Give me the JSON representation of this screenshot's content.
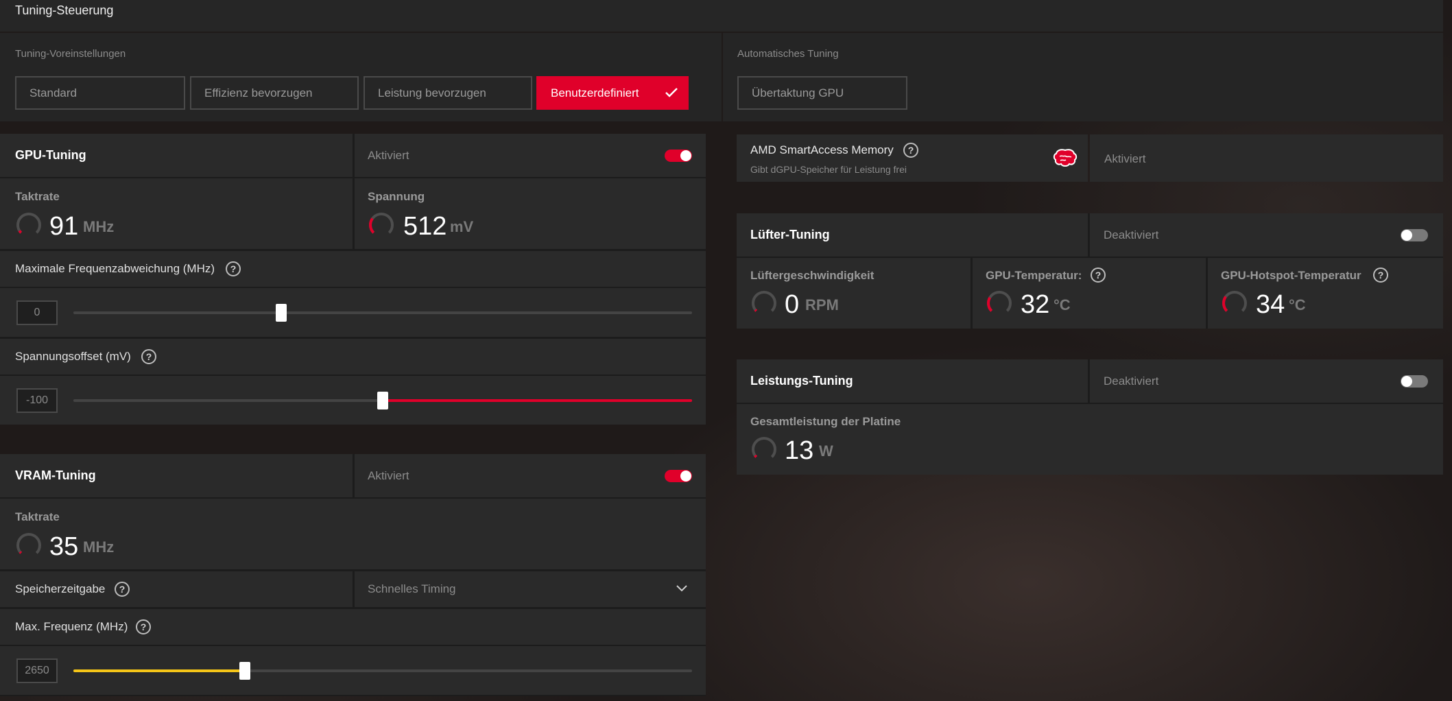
{
  "header": {
    "title": "Tuning-Steuerung"
  },
  "presets": {
    "label": "Tuning-Voreinstellungen",
    "items": [
      "Standard",
      "Effizienz bevorzugen",
      "Leistung bevorzugen",
      "Benutzerdefiniert"
    ],
    "selected": "Benutzerdefiniert",
    "check_icon": "check-icon"
  },
  "auto_tuning": {
    "label": "Automatisches Tuning",
    "button": "Übertaktung GPU"
  },
  "gpu_tuning": {
    "title": "GPU-Tuning",
    "status": "Aktiviert",
    "enabled": true,
    "clock": {
      "label": "Taktrate",
      "value": "91",
      "unit": "MHz",
      "gauge_fraction": 0.05
    },
    "voltage": {
      "label": "Spannung",
      "value": "512",
      "unit": "mV",
      "gauge_fraction": 0.3
    },
    "max_freq_offset": {
      "label": "Maximale Frequenzabweichung (MHz)",
      "value": "0",
      "slider_fraction": 0.336
    },
    "voltage_offset": {
      "label": "Spannungsoffset (mV)",
      "value": "-100",
      "slider_fraction": 0.5
    }
  },
  "vram_tuning": {
    "title": "VRAM-Tuning",
    "status": "Aktiviert",
    "enabled": true,
    "clock": {
      "label": "Taktrate",
      "value": "35",
      "unit": "MHz",
      "gauge_fraction": 0.02
    },
    "memory_timing": {
      "label": "Speicherzeitgabe",
      "value": "Schnelles Timing"
    },
    "max_freq": {
      "label": "Max. Frequenz (MHz)",
      "value": "2650",
      "slider_fraction": 0.277
    }
  },
  "smart_access": {
    "title": "AMD SmartAccess Memory",
    "subtitle": "Gibt dGPU-Speicher für Leistung frei",
    "status": "Aktiviert",
    "icon": "brain-icon"
  },
  "fan_tuning": {
    "title": "Lüfter-Tuning",
    "status": "Deaktiviert",
    "enabled": false,
    "fan_speed": {
      "label": "Lüftergeschwindigkeit",
      "value": "0",
      "unit": "RPM",
      "gauge_fraction": 0.0
    },
    "gpu_temp": {
      "label": "GPU-Temperatur:",
      "value": "32",
      "unit": "°C",
      "gauge_fraction": 0.28
    },
    "hotspot_temp": {
      "label": "GPU-Hotspot-Temperatur",
      "value": "34",
      "unit": "°C",
      "gauge_fraction": 0.3
    }
  },
  "power_tuning": {
    "title": "Leistungs-Tuning",
    "status": "Deaktiviert",
    "enabled": false,
    "board_power": {
      "label": "Gesamtleistung der Platine",
      "value": "13",
      "unit": "W",
      "gauge_fraction": 0.04
    }
  },
  "colors": {
    "accent": "#e0002a",
    "vram_slider": "#f5c518",
    "panel": "#262626"
  }
}
